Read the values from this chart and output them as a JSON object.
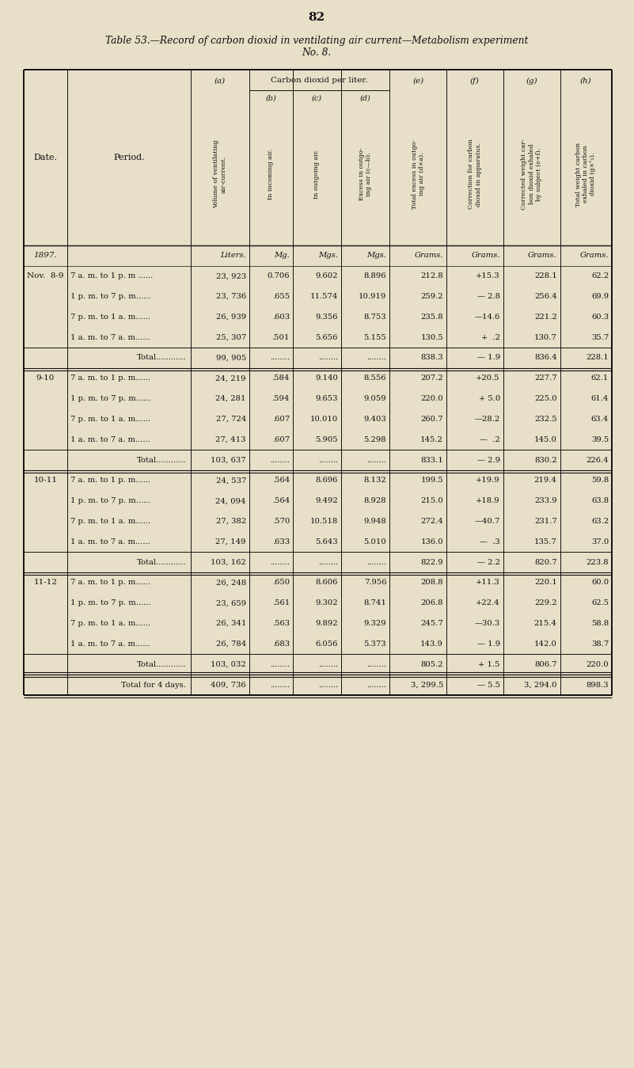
{
  "page_number": "82",
  "title_line1": "Table 53.—Record of carbon dioxid in ventilating air current—Metabolism experiment",
  "title_line2": "No. 8.",
  "bg_color": "#e8dfc8",
  "text_color": "#111111",
  "rows": [
    {
      "type": "unit_header",
      "date": "1897.",
      "period": "",
      "a": "Liters.",
      "b": "Mg.",
      "c": "Mgs.",
      "d": "Mgs.",
      "e": "Grams.",
      "f": "Grams.",
      "g": "Grams.",
      "h": "Grams."
    },
    {
      "type": "data",
      "date": "Nov.  8-9",
      "period": "7 a. m. to 1 p. m ......",
      "a": "23, 923",
      "b": "0.706",
      "c": "9.602",
      "d": "8.896",
      "e": "212.8",
      "f": "+15.3",
      "g": "228.1",
      "h": "62.2"
    },
    {
      "type": "data",
      "date": "",
      "period": "1 p. m. to 7 p. m......",
      "a": "23, 736",
      "b": ".655",
      "c": "11.574",
      "d": "10.919",
      "e": "259.2",
      "f": "— 2.8",
      "g": "256.4",
      "h": "69.9"
    },
    {
      "type": "data",
      "date": "",
      "period": "7 p. m. to 1 a. m......",
      "a": "26, 939",
      "b": ".603",
      "c": "9.356",
      "d": "8.753",
      "e": "235.8",
      "f": "—14.6",
      "g": "221.2",
      "h": "60.3"
    },
    {
      "type": "data",
      "date": "",
      "period": "1 a. m. to 7 a. m......",
      "a": "25, 307",
      "b": ".501",
      "c": "5.656",
      "d": "5.155",
      "e": "130.5",
      "f": "+  .2",
      "g": "130.7",
      "h": "35.7"
    },
    {
      "type": "total",
      "date": "",
      "period": "Total............",
      "a": "99, 905",
      "b": "........",
      "c": "........",
      "d": "........",
      "e": "838.3",
      "f": "— 1.9",
      "g": "836.4",
      "h": "228.1"
    },
    {
      "type": "data",
      "date": "9-10",
      "period": "7 a. m. to 1 p. m......",
      "a": "24, 219",
      "b": ".584",
      "c": "9.140",
      "d": "8.556",
      "e": "207.2",
      "f": "+20.5",
      "g": "227.7",
      "h": "62.1"
    },
    {
      "type": "data",
      "date": "",
      "period": "1 p. m. to 7 p. m......",
      "a": "24, 281",
      "b": ".594",
      "c": "9.653",
      "d": "9.059",
      "e": "220.0",
      "f": "+ 5.0",
      "g": "225.0",
      "h": "61.4"
    },
    {
      "type": "data",
      "date": "",
      "period": "7 p. m. to 1 a. m......",
      "a": "27, 724",
      "b": ".607",
      "c": "10.010",
      "d": "9.403",
      "e": "260.7",
      "f": "—28.2",
      "g": "232.5",
      "h": "63.4"
    },
    {
      "type": "data",
      "date": "",
      "period": "1 a. m. to 7 a. m......",
      "a": "27, 413",
      "b": ".607",
      "c": "5.905",
      "d": "5.298",
      "e": "145.2",
      "f": "—  .2",
      "g": "145.0",
      "h": "39.5"
    },
    {
      "type": "total",
      "date": "",
      "period": "Total............",
      "a": "103, 637",
      "b": "........",
      "c": "........",
      "d": "........",
      "e": "833.1",
      "f": "— 2.9",
      "g": "830.2",
      "h": "226.4"
    },
    {
      "type": "data",
      "date": "10-11",
      "period": "7 a. m. to 1 p. m......",
      "a": "24, 537",
      "b": ".564",
      "c": "8.696",
      "d": "8.132",
      "e": "199.5",
      "f": "+19.9",
      "g": "219.4",
      "h": "59.8"
    },
    {
      "type": "data",
      "date": "",
      "period": "1 p. m. to 7 p. m......",
      "a": "24, 094",
      "b": ".564",
      "c": "9.492",
      "d": "8.928",
      "e": "215.0",
      "f": "+18.9",
      "g": "233.9",
      "h": "63.8"
    },
    {
      "type": "data",
      "date": "",
      "period": "7 p. m. to 1 a. m......",
      "a": "27, 382",
      "b": ".570",
      "c": "10.518",
      "d": "9.948",
      "e": "272.4",
      "f": "—40.7",
      "g": "231.7",
      "h": "63.2"
    },
    {
      "type": "data",
      "date": "",
      "period": "1 a. m. to 7 a. m......",
      "a": "27, 149",
      "b": ".633",
      "c": "5.643",
      "d": "5.010",
      "e": "136.0",
      "f": "—  .3",
      "g": "135.7",
      "h": "37.0"
    },
    {
      "type": "total",
      "date": "",
      "period": "Total............",
      "a": "103, 162",
      "b": "........",
      "c": "........",
      "d": "........",
      "e": "822.9",
      "f": "— 2.2",
      "g": "820.7",
      "h": "223.8"
    },
    {
      "type": "data",
      "date": "11-12",
      "period": "7 a. m. to 1 p. m......",
      "a": "26, 248",
      "b": ".650",
      "c": "8.606",
      "d": "7.956",
      "e": "208.8",
      "f": "+11.3",
      "g": "220.1",
      "h": "60.0"
    },
    {
      "type": "data",
      "date": "",
      "period": "1 p. m. to 7 p. m......",
      "a": "23, 659",
      "b": ".561",
      "c": "9.302",
      "d": "8.741",
      "e": "206.8",
      "f": "+22.4",
      "g": "229.2",
      "h": "62.5"
    },
    {
      "type": "data",
      "date": "",
      "period": "7 p. m. to 1 a. m......",
      "a": "26, 341",
      "b": ".563",
      "c": "9.892",
      "d": "9.329",
      "e": "245.7",
      "f": "—30.3",
      "g": "215.4",
      "h": "58.8"
    },
    {
      "type": "data",
      "date": "",
      "period": "1 a. m. to 7 a. m......",
      "a": "26, 784",
      "b": ".683",
      "c": "6.056",
      "d": "5.373",
      "e": "143.9",
      "f": "— 1.9",
      "g": "142.0",
      "h": "38.7"
    },
    {
      "type": "total",
      "date": "",
      "period": "Total............",
      "a": "103, 032",
      "b": "........",
      "c": "........",
      "d": "........",
      "e": "805.2",
      "f": "+ 1.5",
      "g": "806.7",
      "h": "220.0"
    },
    {
      "type": "grandtotal",
      "date": "",
      "period": "Total for 4 days.",
      "a": "409, 736",
      "b": "........",
      "c": "........",
      "d": "........",
      "e": "3, 299.5",
      "f": "— 5.5",
      "g": "3, 294.0",
      "h": "898.3"
    }
  ],
  "col_header_rotated": [
    "Volume of ventilating\nair-current.",
    "In incoming air.",
    "In outgoing air.",
    "Excess in outgo-\ning air (c—b).",
    "Total excess in outgo-\ning air (d×a).",
    "Correction for carbon\ndioxid in apparatus.",
    "Corrected weight car-\nbon dioxid exhaled\nby subject (e+f).",
    "Total weight carbon\nexhaled in carbon\ndioxid (g×¹₁)."
  ]
}
